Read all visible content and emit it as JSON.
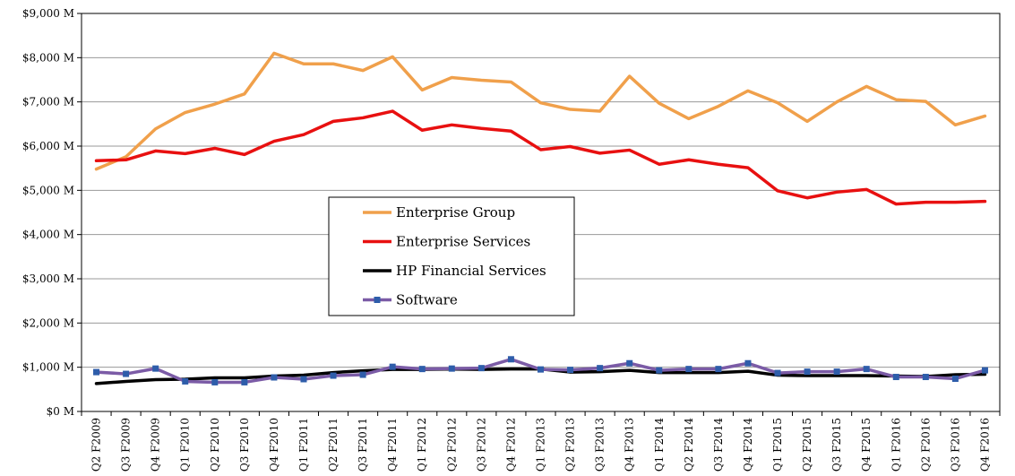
{
  "chart_data": {
    "type": "line",
    "title": "",
    "xlabel": "",
    "ylabel": "",
    "ylim": [
      0,
      9000
    ],
    "y_ticks": [
      0,
      1000,
      2000,
      3000,
      4000,
      5000,
      6000,
      7000,
      8000,
      9000
    ],
    "y_tick_labels": [
      "$0 M",
      "$1,000 M",
      "$2,000 M",
      "$3,000 M",
      "$4,000 M",
      "$5,000 M",
      "$6,000 M",
      "$7,000 M",
      "$8,000 M",
      "$9,000 M"
    ],
    "grid": true,
    "legend_position": "center-left",
    "categories": [
      "Q2 F2009",
      "Q3 F2009",
      "Q4 F2009",
      "Q1 F2010",
      "Q2 F2010",
      "Q3 F2010",
      "Q4 F2010",
      "Q1 F2011",
      "Q2 F2011",
      "Q3 F2011",
      "Q4 F2011",
      "Q1 F2012",
      "Q2 F2012",
      "Q3 F2012",
      "Q4 F2012",
      "Q1 F2013",
      "Q2 F2013",
      "Q3 F2013",
      "Q4 F2013",
      "Q1 F2014",
      "Q2 F2014",
      "Q3 F2014",
      "Q4 F2014",
      "Q1 F2015",
      "Q2 F2015",
      "Q3 F2015",
      "Q4 F2015",
      "Q1 F2016",
      "Q2 F2016",
      "Q3 F2016",
      "Q4 F2016"
    ],
    "series": [
      {
        "name": "Enterprise Group",
        "color": "#F0A04B",
        "marker": "none",
        "values": [
          5480,
          5760,
          6390,
          6760,
          6950,
          7180,
          8100,
          7860,
          7860,
          7710,
          8020,
          7270,
          7550,
          7490,
          7450,
          6980,
          6830,
          6790,
          7580,
          6970,
          6620,
          6900,
          7250,
          6980,
          6560,
          7000,
          7350,
          7050,
          7010,
          6480,
          6680
        ]
      },
      {
        "name": "Enterprise Services",
        "color": "#E81010",
        "marker": "none",
        "values": [
          5670,
          5690,
          5890,
          5830,
          5950,
          5810,
          6110,
          6260,
          6560,
          6640,
          6790,
          6360,
          6480,
          6400,
          6340,
          5920,
          5990,
          5840,
          5910,
          5590,
          5690,
          5590,
          5510,
          4990,
          4830,
          4960,
          5020,
          4690,
          4730,
          4730,
          4750
        ]
      },
      {
        "name": "HP Financial Services",
        "color": "#000000",
        "marker": "none",
        "values": [
          630,
          680,
          720,
          730,
          760,
          760,
          800,
          820,
          880,
          920,
          950,
          950,
          960,
          950,
          960,
          960,
          890,
          900,
          930,
          880,
          880,
          880,
          910,
          820,
          810,
          810,
          810,
          800,
          790,
          830,
          840
        ]
      },
      {
        "name": "Software",
        "color": "#7B5BA6",
        "marker": "square",
        "marker_color": "#2E5DAA",
        "values": [
          890,
          850,
          970,
          680,
          660,
          660,
          770,
          730,
          810,
          830,
          1010,
          960,
          970,
          980,
          1180,
          950,
          940,
          980,
          1090,
          930,
          960,
          960,
          1090,
          870,
          900,
          900,
          960,
          780,
          780,
          740,
          930
        ]
      }
    ]
  }
}
